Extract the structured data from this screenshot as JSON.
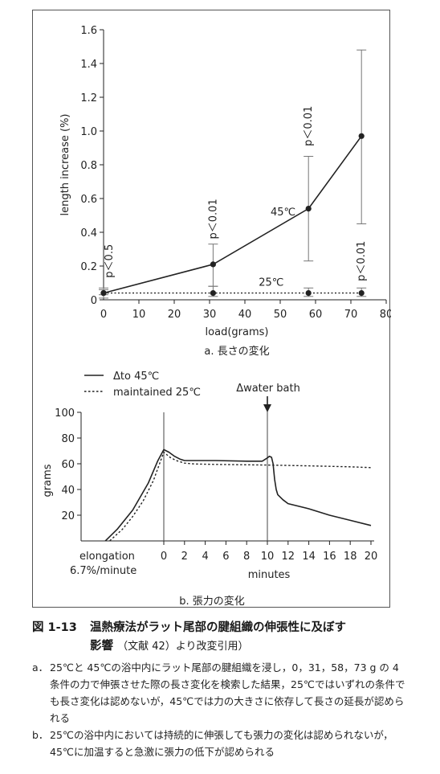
{
  "chart_data": [
    {
      "type": "line",
      "title": "a. 長さの変化",
      "xlabel": "load(grams)",
      "ylabel": "length increase (%)",
      "xlim": [
        0,
        80
      ],
      "ylim": [
        0,
        1.6
      ],
      "xticks": [
        10,
        20,
        30,
        40,
        50,
        60,
        70,
        80
      ],
      "yticks": [
        0,
        0.2,
        0.4,
        0.6,
        0.8,
        1.0,
        1.2,
        1.4,
        1.6
      ],
      "ytick_labels": [
        "0",
        "0.2",
        "0.4",
        "0.6",
        "0.8",
        "1.0",
        "1.2",
        "1.4",
        "1.6"
      ],
      "series": [
        {
          "name": "45℃",
          "x": [
            0,
            31,
            58,
            73
          ],
          "y": [
            0.04,
            0.21,
            0.54,
            0.97
          ],
          "err_low": [
            0.01,
            0.08,
            0.23,
            0.45
          ],
          "err_high": [
            0.07,
            0.33,
            0.85,
            1.48
          ],
          "style": "solid"
        },
        {
          "name": "25℃",
          "x": [
            0,
            31,
            58,
            73
          ],
          "y": [
            0.04,
            0.04,
            0.04,
            0.04
          ],
          "err_low": [
            0.03,
            0.02,
            0.02,
            0.02
          ],
          "err_high": [
            0.06,
            0.08,
            0.07,
            0.07
          ],
          "style": "dotted"
        }
      ],
      "annotations": [
        "p＜0.5",
        "p＜0.01",
        "p＜0.01",
        "p＜0.01"
      ]
    },
    {
      "type": "line",
      "title": "b. 張力の変化",
      "xlabel": "minutes",
      "ylabel": "grams",
      "xlim": [
        -6,
        20
      ],
      "ylim": [
        0,
        100
      ],
      "xticks": [
        0,
        2,
        4,
        6,
        8,
        10,
        12,
        14,
        16,
        18,
        20
      ],
      "yticks": [
        20,
        40,
        60,
        80,
        100
      ],
      "left_label_lines": [
        "elongation",
        "6.7%/minute"
      ],
      "legend": [
        "Δto 45℃",
        "maintained 25℃"
      ],
      "annotation": "Δwater bath",
      "series": [
        {
          "name": "Δto 45℃",
          "style": "solid",
          "x": [
            -5.9,
            -4.5,
            -3,
            -1.5,
            -0.6,
            0,
            0.5,
            1,
            1.6,
            2,
            3,
            5,
            8,
            9.5,
            9.9,
            10.2,
            10.4,
            10.55,
            10.7,
            10.85,
            11,
            11.5,
            12,
            14,
            16,
            18,
            20
          ],
          "y": [
            -2,
            9,
            24,
            45,
            62,
            71,
            69,
            66,
            63.5,
            62.5,
            62.5,
            62.5,
            62,
            62,
            64,
            65.8,
            65,
            60,
            48,
            40,
            36,
            32,
            29,
            25,
            20,
            16,
            12
          ]
        },
        {
          "name": "maintained 25℃",
          "style": "dotted",
          "x": [
            -5.5,
            -4,
            -3,
            -2,
            -1,
            0,
            0.6,
            1.2,
            2,
            3,
            5,
            8,
            10,
            12,
            14,
            16,
            18,
            20
          ],
          "y": [
            -2,
            9,
            19,
            31,
            47,
            69,
            65,
            62.5,
            60.5,
            59.8,
            59.5,
            59.2,
            59,
            58.7,
            58.4,
            58,
            57.6,
            57
          ]
        }
      ]
    }
  ],
  "caption": {
    "number": "図 1-13",
    "title_line1": "温熱療法がラット尾部の腱組織の伸張性に及ぼす",
    "title_line2": "影響",
    "title_ref": "（文献 42）より改変引用）",
    "note_a_key": "a．",
    "note_a": "25℃と 45℃の浴中内にラット尾部の腱組織を浸し，0，31，58，73 g の 4 条件の力で伸張させた際の長さ変化を検索した結果，25℃ではいずれの条件でも長さ変化は認めないが，45℃では力の大きさに依存して長さの延長が認められる",
    "note_b_key": "b．",
    "note_b": "25℃の浴中内においては持続的に伸張しても張力の変化は認められないが，45℃に加温すると急激に張力の低下が認められる"
  }
}
